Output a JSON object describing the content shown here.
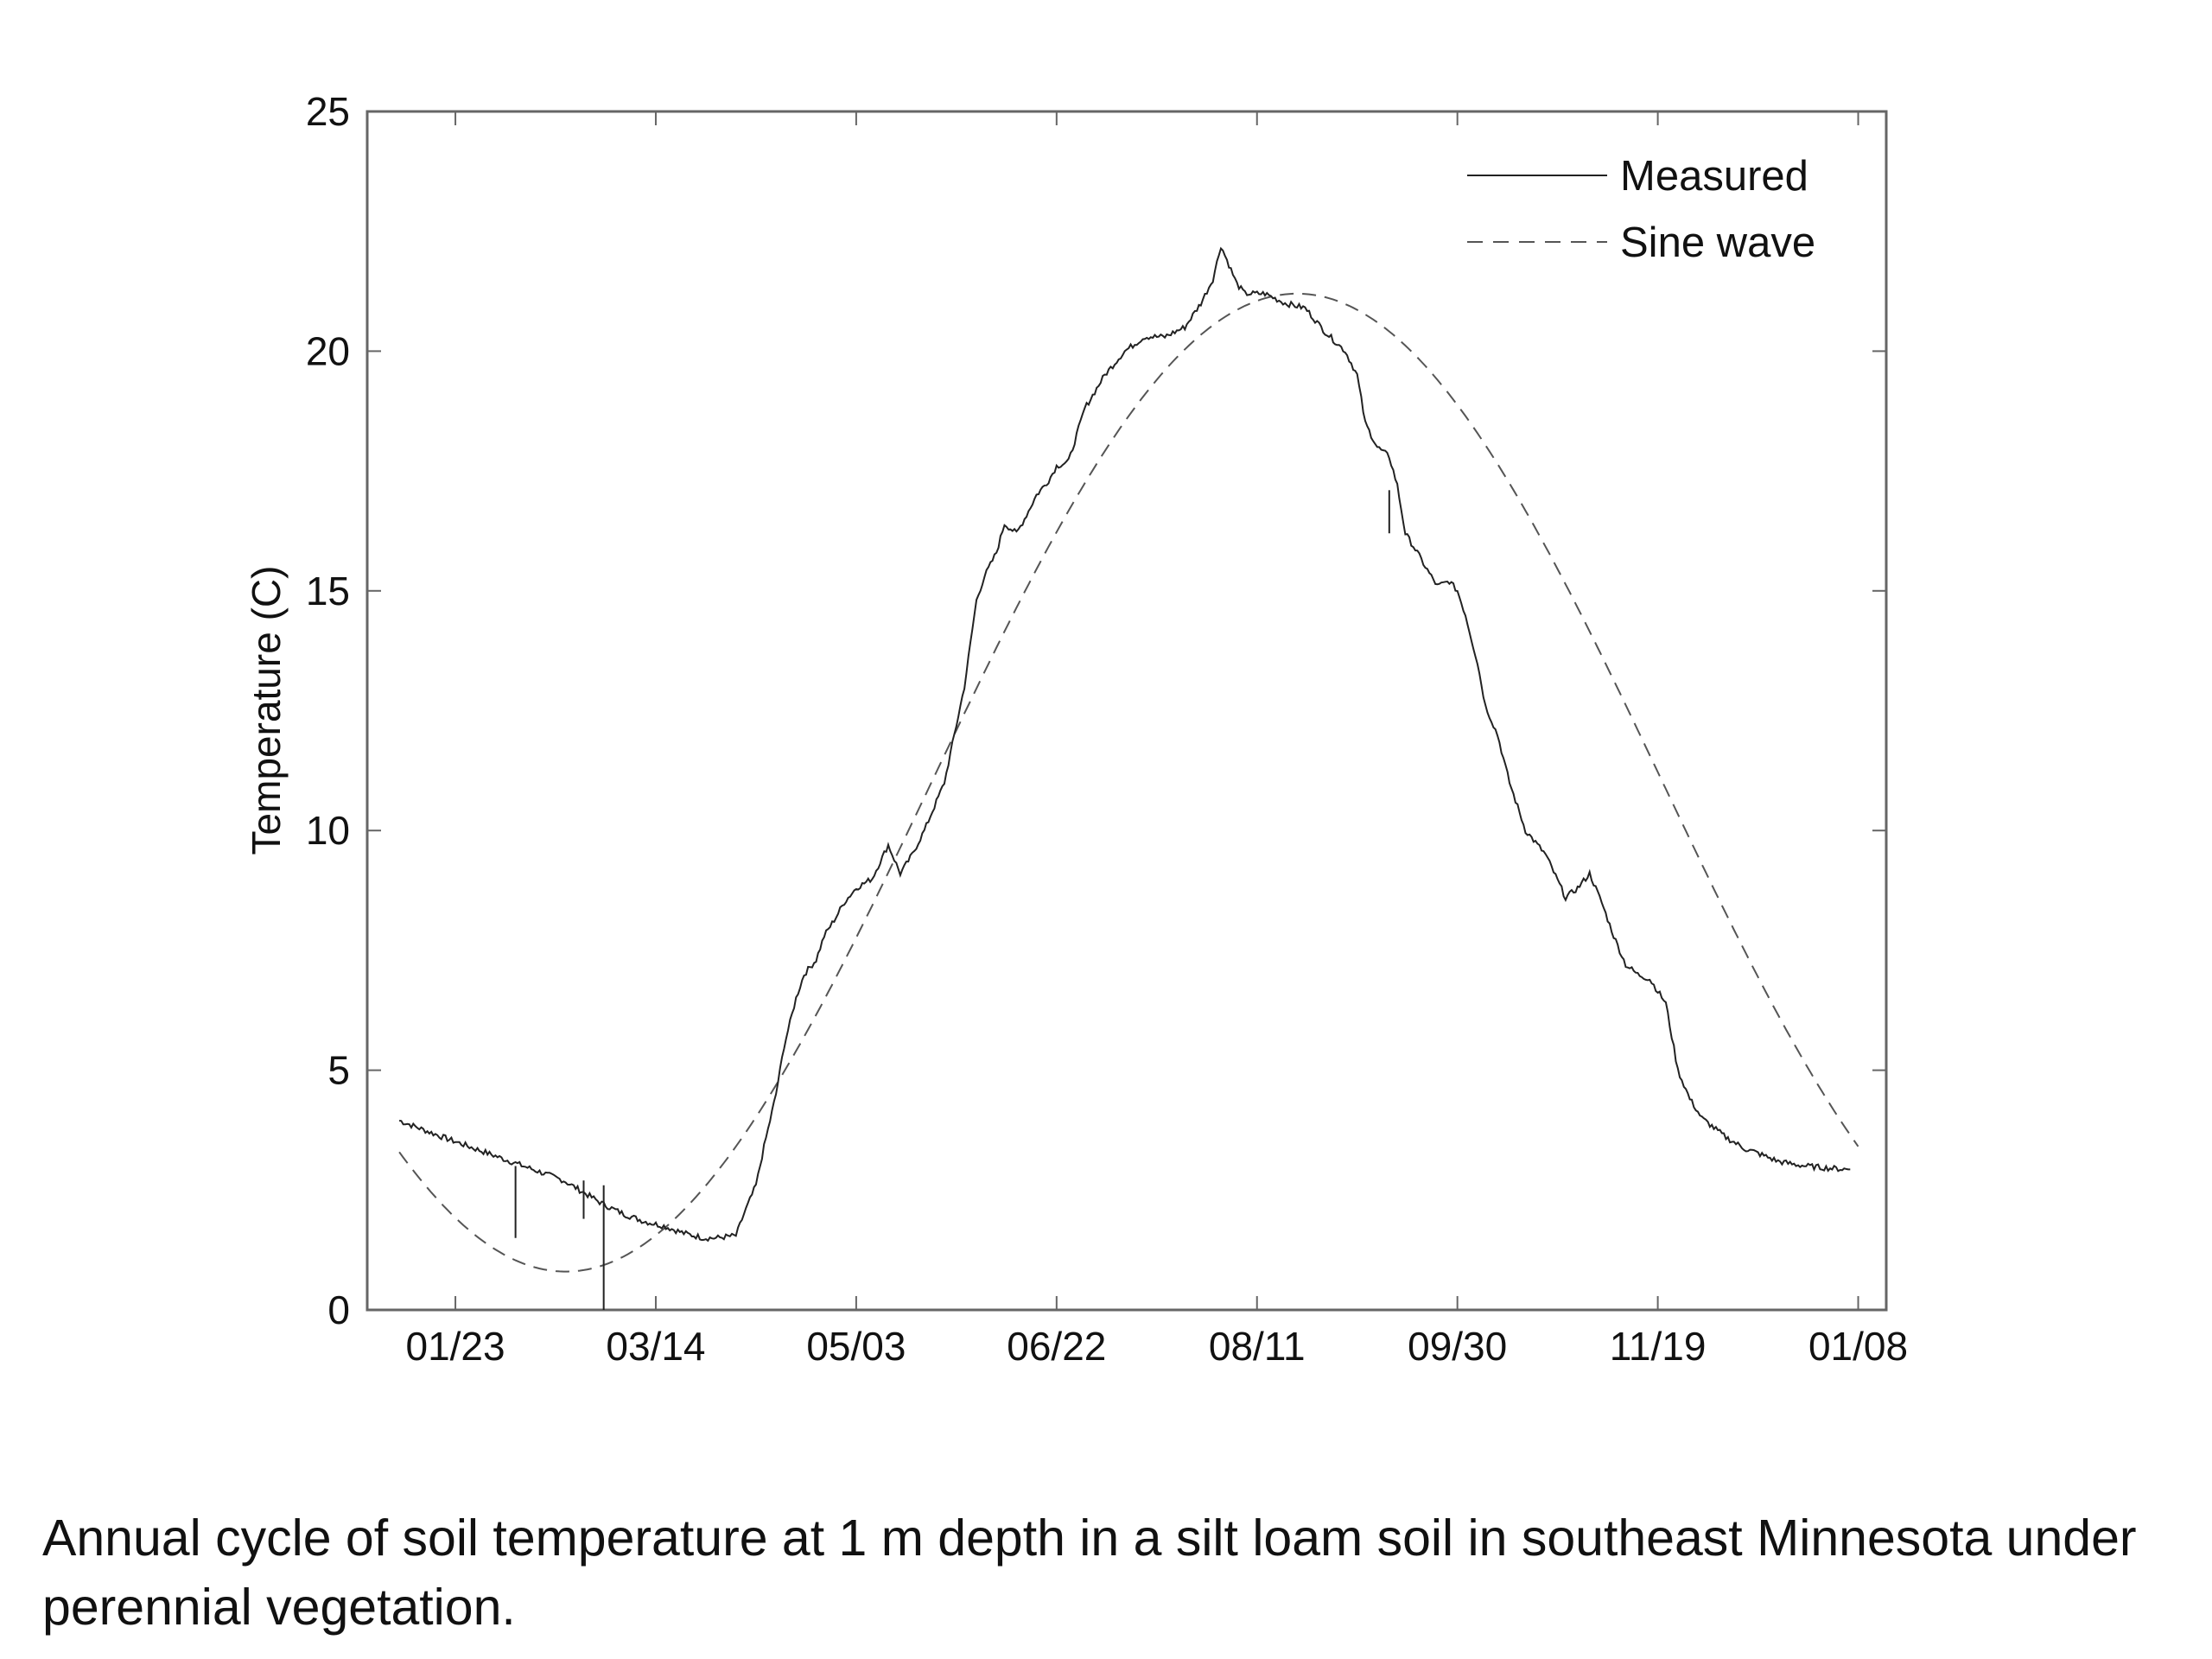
{
  "caption": "Annual cycle of soil temperature at 1 m depth in a silt loam soil in southeast Minnesota under perennial vegetation.",
  "chart_data": {
    "type": "line",
    "title": "",
    "xlabel": "",
    "ylabel": "Temperature (C)",
    "x_tick_labels": [
      "01/23",
      "03/14",
      "05/03",
      "06/22",
      "08/11",
      "09/30",
      "11/19",
      "01/08"
    ],
    "x_tick_days": [
      23,
      73,
      123,
      173,
      223,
      273,
      323,
      373
    ],
    "xlim_days": [
      1,
      380
    ],
    "ylim": [
      0,
      25
    ],
    "y_ticks": [
      0,
      5,
      10,
      15,
      20,
      25
    ],
    "grid": false,
    "legend_position": "top-right",
    "colors": {
      "measured": "#222222",
      "sine": "#555555",
      "axis": "#666666"
    },
    "series": [
      {
        "name": "Measured",
        "style": "solid",
        "x_days": [
          9,
          20,
          30,
          40,
          50,
          55,
          60,
          65,
          70,
          75,
          80,
          85,
          88,
          93,
          95,
          98,
          100,
          103,
          105,
          108,
          110,
          113,
          115,
          118,
          120,
          123,
          127,
          131,
          134,
          137,
          140,
          145,
          150,
          153,
          155,
          158,
          160,
          163,
          165,
          168,
          171,
          173,
          176,
          180,
          185,
          190,
          195,
          200,
          205,
          209,
          212,
          214,
          216,
          218,
          220,
          225,
          230,
          235,
          240,
          245,
          248,
          250,
          253,
          256,
          258,
          260,
          263,
          265,
          268,
          271,
          273,
          275,
          278,
          280,
          283,
          286,
          290,
          295,
          300,
          303,
          306,
          309,
          312,
          315,
          318,
          321,
          325,
          328,
          331,
          334,
          337,
          340,
          343,
          345,
          347,
          350,
          353,
          356,
          360,
          364,
          367,
          371
        ],
        "values": [
          3.95,
          3.6,
          3.3,
          3.0,
          2.7,
          2.45,
          2.2,
          2.0,
          1.85,
          1.75,
          1.6,
          1.5,
          1.5,
          1.55,
          2.0,
          2.6,
          3.4,
          4.5,
          5.5,
          6.5,
          7.0,
          7.3,
          7.8,
          8.2,
          8.5,
          8.8,
          9.0,
          9.7,
          9.1,
          9.5,
          10.0,
          11.0,
          13.0,
          14.8,
          15.3,
          15.8,
          16.4,
          16.2,
          16.5,
          17.0,
          17.3,
          17.6,
          17.7,
          18.8,
          19.5,
          20.0,
          20.3,
          20.3,
          20.5,
          21.0,
          21.5,
          22.2,
          21.8,
          21.4,
          21.2,
          21.2,
          21.0,
          20.9,
          20.4,
          20.0,
          19.5,
          18.5,
          18.0,
          17.8,
          17.2,
          16.2,
          15.8,
          15.5,
          15.1,
          15.2,
          15.0,
          14.5,
          13.5,
          12.6,
          12.0,
          11.0,
          10.0,
          9.5,
          8.6,
          8.8,
          9.1,
          8.5,
          7.8,
          7.2,
          7.0,
          6.9,
          6.4,
          5.0,
          4.4,
          4.0,
          3.8,
          3.6,
          3.45,
          3.35,
          3.3,
          3.2,
          3.1,
          3.05,
          3.0,
          2.97,
          2.95,
          2.93
        ],
        "spikes": [
          {
            "x_day": 38,
            "values": [
              3.0,
              1.5
            ]
          },
          {
            "x_day": 55,
            "values": [
              2.7,
              1.9
            ]
          },
          {
            "x_day": 60,
            "values": [
              2.6,
              0.0
            ]
          },
          {
            "x_day": 256,
            "values": [
              16.2,
              17.1
            ]
          }
        ]
      },
      {
        "name": "Sine wave",
        "style": "dashed",
        "sine_params": {
          "mean": 11.0,
          "amplitude": 10.2,
          "phase_day": 233,
          "period_days": 365
        },
        "x_range_days": [
          9,
          373
        ]
      }
    ]
  }
}
